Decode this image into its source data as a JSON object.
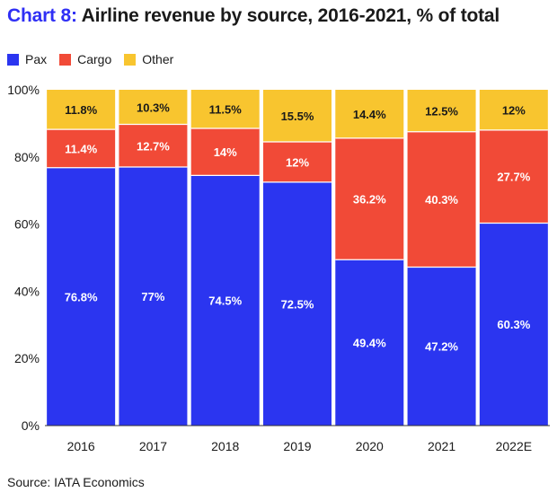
{
  "title": {
    "prefix": "Chart 8:",
    "text": "Airline revenue by source, 2016-2021, % of total"
  },
  "legend": [
    {
      "name": "Pax",
      "color": "#2b35f0"
    },
    {
      "name": "Cargo",
      "color": "#f14a37"
    },
    {
      "name": "Other",
      "color": "#f8c52f"
    }
  ],
  "source": "Source: IATA Economics",
  "chart_data": {
    "type": "bar",
    "stacked": true,
    "categories": [
      "2016",
      "2017",
      "2018",
      "2019",
      "2020",
      "2021",
      "2022E"
    ],
    "series": [
      {
        "name": "Pax",
        "color": "#2b35f0",
        "values": [
          76.8,
          77,
          74.5,
          72.5,
          49.4,
          47.2,
          60.3
        ]
      },
      {
        "name": "Cargo",
        "color": "#f14a37",
        "values": [
          11.4,
          12.7,
          14,
          12,
          36.2,
          40.3,
          27.7
        ]
      },
      {
        "name": "Other",
        "color": "#f8c52f",
        "values": [
          11.8,
          10.3,
          11.5,
          15.5,
          14.4,
          12.5,
          12
        ]
      }
    ],
    "data_labels": [
      [
        "76.8%",
        "77%",
        "74.5%",
        "72.5%",
        "49.4%",
        "47.2%",
        "60.3%"
      ],
      [
        "11.4%",
        "12.7%",
        "14%",
        "12%",
        "36.2%",
        "40.3%",
        "27.7%"
      ],
      [
        "11.8%",
        "10.3%",
        "11.5%",
        "15.5%",
        "14.4%",
        "12.5%",
        "12%"
      ]
    ],
    "y_ticks": [
      "0%",
      "20%",
      "40%",
      "60%",
      "80%",
      "100%"
    ],
    "y_tick_values": [
      0,
      20,
      40,
      60,
      80,
      100
    ],
    "ylim": [
      0,
      100
    ],
    "grid": false,
    "legend_position": "top-left"
  }
}
